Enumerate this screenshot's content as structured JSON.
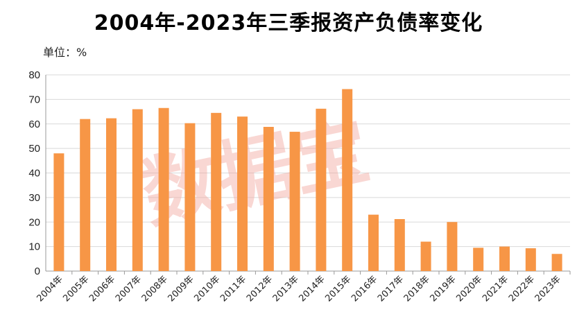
{
  "chart_data": {
    "type": "bar",
    "title": "2004年-2023年三季报资产负债率变化",
    "unit_label": "单位：%",
    "ylim": [
      0,
      80
    ],
    "yticks": [
      0,
      10,
      20,
      30,
      40,
      50,
      60,
      70,
      80
    ],
    "grid": true,
    "bar_color": "#f79646",
    "categories": [
      "2004年",
      "2005年",
      "2006年",
      "2007年",
      "2008年",
      "2009年",
      "2010年",
      "2011年",
      "2012年",
      "2013年",
      "2014年",
      "2015年",
      "2016年",
      "2017年",
      "2018年",
      "2019年",
      "2020年",
      "2021年",
      "2022年",
      "2023年"
    ],
    "values": [
      48,
      62,
      62.3,
      66,
      66.5,
      60.3,
      64.5,
      63,
      58.8,
      56.8,
      66.2,
      74.2,
      23,
      21.2,
      12,
      20,
      9.5,
      10,
      9.3,
      7
    ],
    "watermark": "数据宝"
  }
}
